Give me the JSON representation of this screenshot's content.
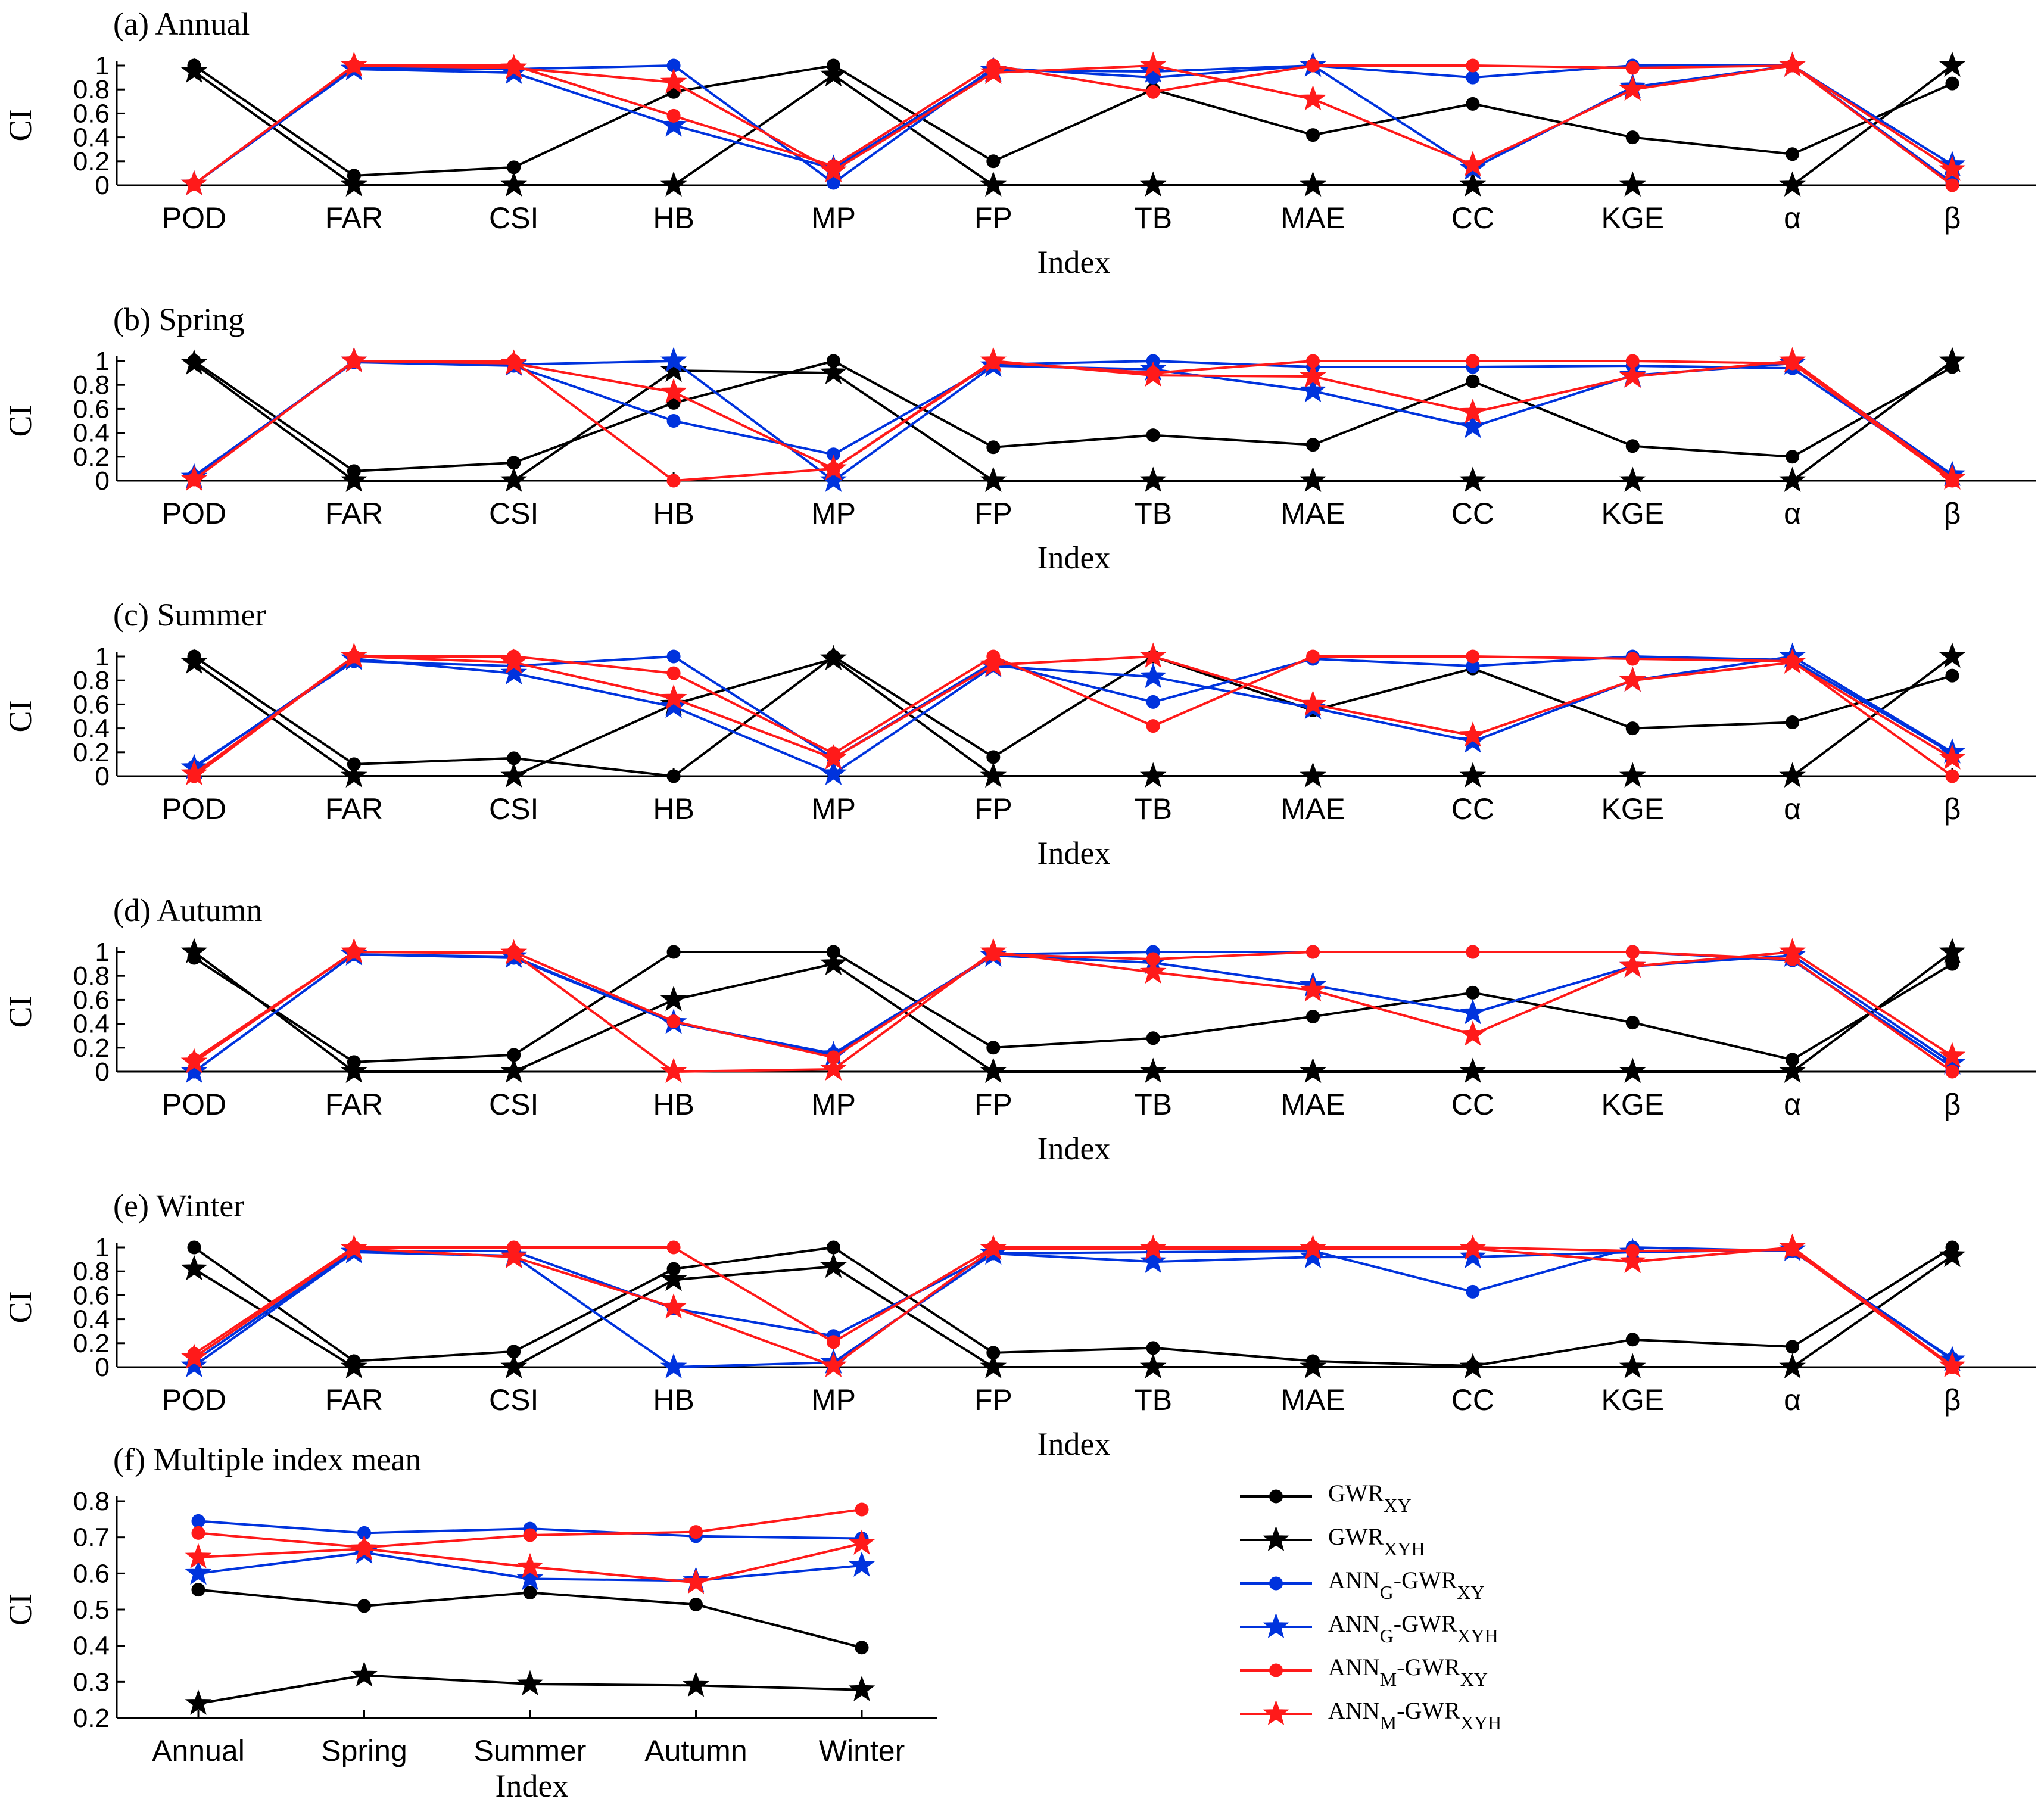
{
  "colors": {
    "black": "#000000",
    "blue": "#0033dd",
    "red": "#ff1a1a"
  },
  "series_info": [
    {
      "key": "gwr_xy",
      "color": "#000000",
      "marker": "circle",
      "legend": {
        "base": "GWR",
        "sub": "XY",
        "prefix_sub": ""
      }
    },
    {
      "key": "gwr_xyh",
      "color": "#000000",
      "marker": "star",
      "legend": {
        "base": "GWR",
        "sub": "XYH",
        "prefix_sub": ""
      }
    },
    {
      "key": "anng_gwr_xy",
      "color": "#0033dd",
      "marker": "circle",
      "legend": {
        "prefix": "ANN",
        "prefix_sub": "G",
        "base": "-GWR",
        "sub": "XY"
      }
    },
    {
      "key": "anng_gwr_xyh",
      "color": "#0033dd",
      "marker": "star",
      "legend": {
        "prefix": "ANN",
        "prefix_sub": "G",
        "base": "-GWR",
        "sub": "XYH"
      }
    },
    {
      "key": "annm_gwr_xy",
      "color": "#ff1a1a",
      "marker": "circle",
      "legend": {
        "prefix": "ANN",
        "prefix_sub": "M",
        "base": "-GWR",
        "sub": "XY"
      }
    },
    {
      "key": "annm_gwr_xyh",
      "color": "#ff1a1a",
      "marker": "star",
      "legend": {
        "prefix": "ANN",
        "prefix_sub": "M",
        "base": "-GWR",
        "sub": "XYH"
      }
    }
  ],
  "chart_data": [
    {
      "type": "line",
      "title": "(a) Annual",
      "xlabel": "Index",
      "ylabel": "CI",
      "categories": [
        "POD",
        "FAR",
        "CSI",
        "HB",
        "MP",
        "FP",
        "TB",
        "MAE",
        "CC",
        "KGE",
        "α",
        "β"
      ],
      "ylim": [
        0,
        1
      ],
      "yticks": [
        "0",
        "0.2",
        "0.4",
        "0.6",
        "0.8",
        "1"
      ],
      "series": [
        {
          "name": "GWR_XY",
          "values": [
            1.0,
            0.08,
            0.15,
            0.78,
            1.0,
            0.2,
            0.8,
            0.42,
            0.68,
            0.4,
            0.26,
            0.85
          ]
        },
        {
          "name": "GWR_XYH",
          "values": [
            0.95,
            0.0,
            0.0,
            0.0,
            0.92,
            0.0,
            0.0,
            0.0,
            0.0,
            0.0,
            0.0,
            1.0
          ]
        },
        {
          "name": "ANNG-GWR_XY",
          "values": [
            0.01,
            0.98,
            0.97,
            1.0,
            0.02,
            0.98,
            0.9,
            1.0,
            0.9,
            1.0,
            1.0,
            0.02
          ]
        },
        {
          "name": "ANNG-GWR_XYH",
          "values": [
            0.01,
            0.97,
            0.94,
            0.5,
            0.14,
            0.96,
            0.95,
            1.0,
            0.14,
            0.82,
            1.0,
            0.17
          ]
        },
        {
          "name": "ANNM-GWR_XY",
          "values": [
            0.01,
            1.0,
            1.0,
            0.58,
            0.16,
            1.0,
            0.78,
            1.0,
            1.0,
            0.98,
            1.0,
            0.0
          ]
        },
        {
          "name": "ANNM-GWR_XYH",
          "values": [
            0.01,
            1.0,
            0.98,
            0.86,
            0.12,
            0.94,
            1.0,
            0.72,
            0.17,
            0.8,
            1.0,
            0.13
          ]
        }
      ]
    },
    {
      "type": "line",
      "title": "(b) Spring",
      "xlabel": "Index",
      "ylabel": "CI",
      "categories": [
        "POD",
        "FAR",
        "CSI",
        "HB",
        "MP",
        "FP",
        "TB",
        "MAE",
        "CC",
        "KGE",
        "α",
        "β"
      ],
      "ylim": [
        0,
        1
      ],
      "yticks": [
        "0",
        "0.2",
        "0.4",
        "0.6",
        "0.8",
        "1"
      ],
      "series": [
        {
          "name": "GWR_XY",
          "values": [
            1.0,
            0.08,
            0.15,
            0.65,
            1.0,
            0.28,
            0.38,
            0.3,
            0.83,
            0.29,
            0.2,
            0.95
          ]
        },
        {
          "name": "GWR_XYH",
          "values": [
            0.98,
            0.0,
            0.0,
            0.92,
            0.9,
            0.0,
            0.0,
            0.0,
            0.0,
            0.0,
            0.0,
            1.0
          ]
        },
        {
          "name": "ANNG-GWR_XY",
          "values": [
            0.04,
            0.99,
            0.96,
            0.5,
            0.22,
            0.97,
            1.0,
            0.95,
            0.95,
            0.96,
            0.94,
            0.03
          ]
        },
        {
          "name": "ANNG-GWR_XYH",
          "values": [
            0.03,
            1.0,
            0.97,
            1.0,
            0.0,
            0.96,
            0.93,
            0.75,
            0.45,
            0.88,
            0.98,
            0.05
          ]
        },
        {
          "name": "ANNM-GWR_XY",
          "values": [
            0.01,
            1.0,
            1.0,
            0.0,
            0.1,
            0.99,
            0.9,
            1.0,
            1.0,
            1.0,
            0.98,
            0.0
          ]
        },
        {
          "name": "ANNM-GWR_XYH",
          "values": [
            0.01,
            1.0,
            0.98,
            0.74,
            0.1,
            1.0,
            0.88,
            0.87,
            0.57,
            0.87,
            1.0,
            0.02
          ]
        }
      ]
    },
    {
      "type": "line",
      "title": "(c) Summer",
      "xlabel": "Index",
      "ylabel": "CI",
      "categories": [
        "POD",
        "FAR",
        "CSI",
        "HB",
        "MP",
        "FP",
        "TB",
        "MAE",
        "CC",
        "KGE",
        "α",
        "β"
      ],
      "ylim": [
        0,
        1
      ],
      "yticks": [
        "0",
        "0.2",
        "0.4",
        "0.6",
        "0.8",
        "1"
      ],
      "series": [
        {
          "name": "GWR_XY",
          "values": [
            1.0,
            0.1,
            0.15,
            0.0,
            1.0,
            0.16,
            1.0,
            0.55,
            0.9,
            0.4,
            0.45,
            0.84
          ]
        },
        {
          "name": "GWR_XYH",
          "values": [
            0.95,
            0.0,
            0.0,
            0.6,
            0.98,
            0.0,
            0.0,
            0.0,
            0.0,
            0.0,
            0.0,
            1.0
          ]
        },
        {
          "name": "ANNG-GWR_XY",
          "values": [
            0.08,
            0.96,
            0.92,
            1.0,
            0.15,
            0.95,
            0.62,
            0.98,
            0.92,
            1.0,
            0.97,
            0.19
          ]
        },
        {
          "name": "ANNG-GWR_XYH",
          "values": [
            0.07,
            0.98,
            0.86,
            0.58,
            0.02,
            0.92,
            0.83,
            0.57,
            0.29,
            0.8,
            1.0,
            0.2
          ]
        },
        {
          "name": "ANNM-GWR_XY",
          "values": [
            0.0,
            1.0,
            1.0,
            0.86,
            0.19,
            1.0,
            0.42,
            1.0,
            1.0,
            0.98,
            0.96,
            0.0
          ]
        },
        {
          "name": "ANNM-GWR_XYH",
          "values": [
            0.02,
            1.0,
            0.95,
            0.65,
            0.15,
            0.93,
            1.0,
            0.6,
            0.34,
            0.8,
            0.95,
            0.15
          ]
        }
      ]
    },
    {
      "type": "line",
      "title": "(d) Autumn",
      "xlabel": "Index",
      "ylabel": "CI",
      "categories": [
        "POD",
        "FAR",
        "CSI",
        "HB",
        "MP",
        "FP",
        "TB",
        "MAE",
        "CC",
        "KGE",
        "α",
        "β"
      ],
      "ylim": [
        0,
        1
      ],
      "yticks": [
        "0",
        "0.2",
        "0.4",
        "0.6",
        "0.8",
        "1"
      ],
      "series": [
        {
          "name": "GWR_XY",
          "values": [
            0.95,
            0.08,
            0.14,
            1.0,
            1.0,
            0.2,
            0.28,
            0.46,
            0.66,
            0.41,
            0.1,
            0.9
          ]
        },
        {
          "name": "GWR_XYH",
          "values": [
            1.0,
            0.0,
            0.0,
            0.6,
            0.9,
            0.0,
            0.0,
            0.0,
            0.0,
            0.0,
            0.0,
            1.0
          ]
        },
        {
          "name": "ANNG-GWR_XY",
          "values": [
            0.0,
            0.98,
            0.95,
            0.41,
            0.15,
            0.98,
            1.0,
            1.0,
            1.0,
            1.0,
            0.93,
            0.04
          ]
        },
        {
          "name": "ANNG-GWR_XYH",
          "values": [
            0.0,
            0.98,
            0.96,
            0.41,
            0.14,
            0.97,
            0.91,
            0.72,
            0.49,
            0.88,
            0.97,
            0.07
          ]
        },
        {
          "name": "ANNM-GWR_XY",
          "values": [
            0.1,
            1.0,
            1.0,
            0.42,
            0.12,
            0.98,
            0.94,
            1.0,
            1.0,
            1.0,
            0.94,
            0.0
          ]
        },
        {
          "name": "ANNM-GWR_XYH",
          "values": [
            0.08,
            1.0,
            0.99,
            0.0,
            0.02,
            1.0,
            0.83,
            0.68,
            0.31,
            0.88,
            1.0,
            0.13
          ]
        }
      ]
    },
    {
      "type": "line",
      "title": "(e) Winter",
      "xlabel": "Index",
      "ylabel": "CI",
      "categories": [
        "POD",
        "FAR",
        "CSI",
        "HB",
        "MP",
        "FP",
        "TB",
        "MAE",
        "CC",
        "KGE",
        "α",
        "β"
      ],
      "ylim": [
        0,
        1
      ],
      "yticks": [
        "0",
        "0.2",
        "0.4",
        "0.6",
        "0.8",
        "1"
      ],
      "series": [
        {
          "name": "GWR_XY",
          "values": [
            1.0,
            0.05,
            0.13,
            0.82,
            1.0,
            0.12,
            0.16,
            0.05,
            0.01,
            0.23,
            0.17,
            1.0
          ]
        },
        {
          "name": "GWR_XYH",
          "values": [
            0.82,
            0.0,
            0.0,
            0.73,
            0.84,
            0.0,
            0.0,
            0.0,
            0.0,
            0.0,
            0.0,
            0.93
          ]
        },
        {
          "name": "ANNG-GWR_XY",
          "values": [
            0.05,
            0.97,
            0.97,
            0.49,
            0.26,
            0.95,
            0.96,
            0.97,
            0.63,
            1.0,
            0.97,
            0.07
          ]
        },
        {
          "name": "ANNG-GWR_XYH",
          "values": [
            0.01,
            0.96,
            0.93,
            0.0,
            0.04,
            0.95,
            0.88,
            0.92,
            0.92,
            0.96,
            0.98,
            0.06
          ]
        },
        {
          "name": "ANNM-GWR_XY",
          "values": [
            0.11,
            1.0,
            1.0,
            1.0,
            0.21,
            1.0,
            1.0,
            1.0,
            1.0,
            0.97,
            0.98,
            0.0
          ]
        },
        {
          "name": "ANNM-GWR_XYH",
          "values": [
            0.08,
            0.99,
            0.92,
            0.5,
            0.01,
            0.99,
            0.99,
            0.99,
            0.99,
            0.88,
            1.0,
            0.01
          ]
        }
      ]
    },
    {
      "type": "line",
      "title": "(f) Multiple index mean",
      "xlabel": "Index",
      "ylabel": "CI",
      "categories": [
        "Annual",
        "Spring",
        "Summer",
        "Autumn",
        "Winter"
      ],
      "ylim": [
        0.2,
        0.8
      ],
      "yticks": [
        "0.2",
        "0.3",
        "0.4",
        "0.5",
        "0.6",
        "0.7",
        "0.8"
      ],
      "series": [
        {
          "name": "GWR_XY",
          "values": [
            0.555,
            0.51,
            0.547,
            0.514,
            0.395
          ]
        },
        {
          "name": "GWR_XYH",
          "values": [
            0.24,
            0.318,
            0.294,
            0.29,
            0.278
          ]
        },
        {
          "name": "ANNG-GWR_XY",
          "values": [
            0.745,
            0.712,
            0.724,
            0.703,
            0.697
          ]
        },
        {
          "name": "ANNG-GWR_XYH",
          "values": [
            0.6,
            0.658,
            0.585,
            0.58,
            0.622
          ]
        },
        {
          "name": "ANNM-GWR_XY",
          "values": [
            0.712,
            0.672,
            0.706,
            0.715,
            0.777
          ]
        },
        {
          "name": "ANNM-GWR_XYH",
          "values": [
            0.645,
            0.668,
            0.618,
            0.575,
            0.683
          ]
        }
      ]
    }
  ]
}
